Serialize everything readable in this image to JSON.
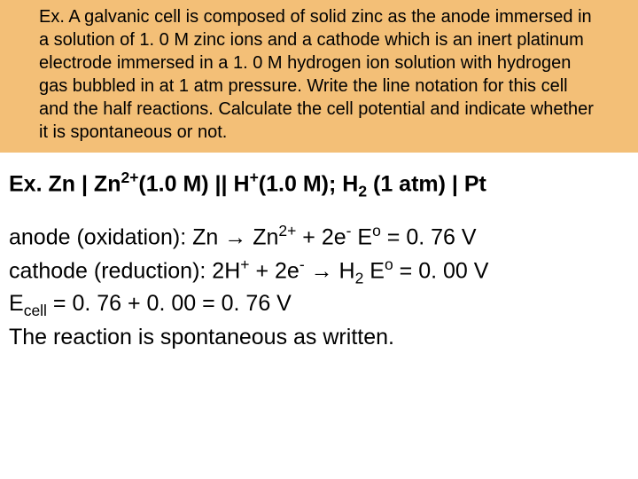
{
  "question": {
    "prefix": "Ex. ",
    "body": "A galvanic cell is composed of solid zinc as the anode immersed in a solution of 1. 0 M zinc ions and a cathode which is an inert platinum electrode immersed in a 1. 0 M hydrogen ion solution with hydrogen gas bubbled in at 1 atm pressure. Write the line notation for this cell and the half reactions. Calculate the cell potential and indicate whether it is spontaneous or not."
  },
  "notation": {
    "prefix": "Ex.  ",
    "zn": "Zn",
    "bar1": " | ",
    "zn2": "Zn",
    "zn2_sup": "2+",
    "conc1": "(1.0 M)",
    "dbar": " || ",
    "h": "H",
    "h_sup": "+",
    "conc2": "(1.0 M); ",
    "h2": "H",
    "h2_sub": "2",
    "atm": " (1 atm)",
    "bar2": " | ",
    "pt": "Pt"
  },
  "anode": {
    "label": "anode  (oxidation):  ",
    "zn": "Zn",
    "arrow": " → ",
    "zn2": "Zn",
    "zn2_sup": "2+",
    "plus": " + 2e",
    "e_sup": "-",
    "gap": "   ",
    "E": "E",
    "o_sup": "o",
    "val": "  = 0. 76 V"
  },
  "cathode": {
    "label": "cathode (reduction):  ",
    "h2": "2H",
    "h_sup": "+",
    "plus": " + 2e",
    "e_sup": "-",
    "arrow": " → ",
    "H": "H",
    "h2_sub": "2",
    "gap": "  ",
    "E": "E",
    "o_sup": "o",
    "val": " = 0. 00 V"
  },
  "ecell": {
    "E": "E",
    "sub": "cell",
    "val": " = 0. 76 + 0. 00 = 0. 76 V"
  },
  "conclusion": "The reaction is spontaneous as written."
}
